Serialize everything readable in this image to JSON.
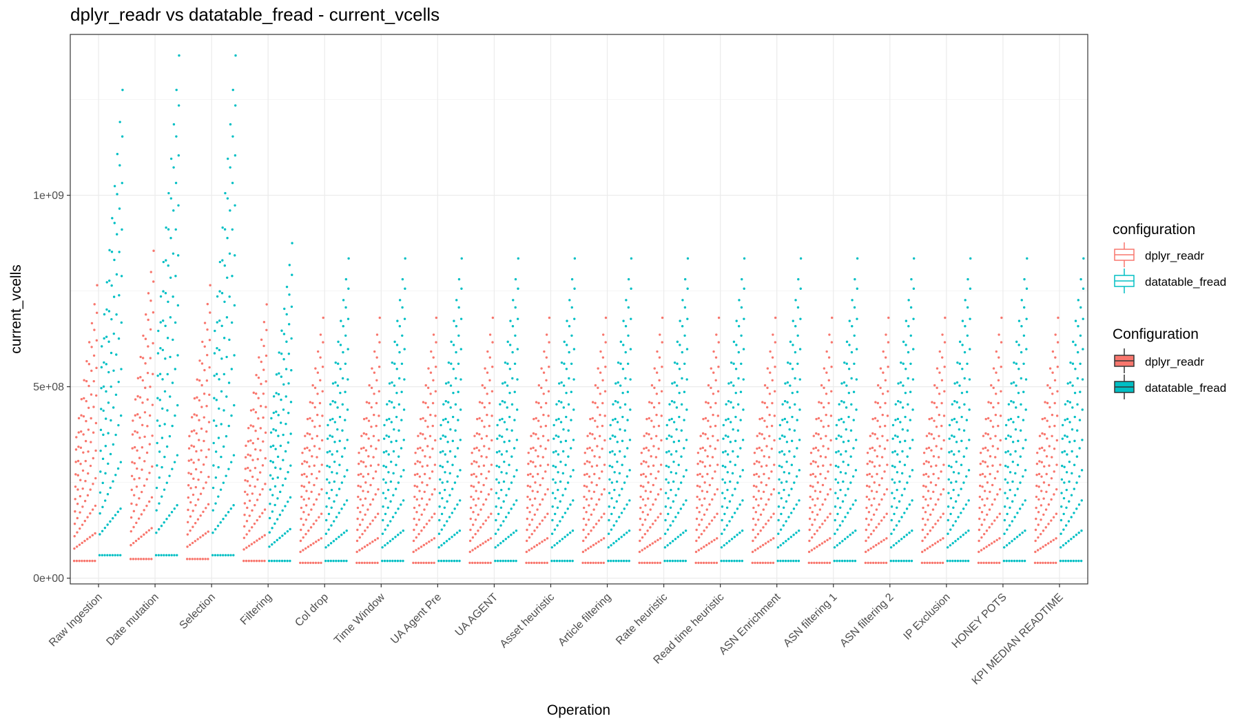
{
  "chart_data": {
    "type": "scatter",
    "title": "dplyr_readr vs datatable_fread - current_vcells",
    "xlabel": "Operation",
    "ylabel": "current_vcells",
    "ylim": [
      -15000000,
      1420000000
    ],
    "yticks": [
      {
        "value": 0,
        "label": "0e+00"
      },
      {
        "value": 500000000,
        "label": "5e+08"
      },
      {
        "value": 1000000000,
        "label": "1e+09"
      }
    ],
    "categories": [
      "Raw Ingestion",
      "Date mutation",
      "Selection",
      "Filtering",
      "Col drop",
      "Time Window",
      "UA Agent Pre",
      "UA AGENT",
      "Asset heuristic",
      "Article filtering",
      "Rate heuristic",
      "Read time heuristic",
      "ASN Enrichment",
      "ASN filtering 1",
      "ASN filtering 2",
      "IP Exclusion",
      "HONEY POTS",
      "KPI MEDIAN READTIME"
    ],
    "grid": true,
    "legend_position": "right",
    "series": [
      {
        "name": "dplyr_readr",
        "color": "#F8766D",
        "min": [
          45000000,
          50000000,
          50000000,
          45000000,
          40000000,
          40000000,
          40000000,
          40000000,
          40000000,
          40000000,
          40000000,
          40000000,
          40000000,
          40000000,
          40000000,
          40000000,
          40000000,
          40000000
        ],
        "max": [
          765000000,
          855000000,
          765000000,
          715000000,
          680000000,
          680000000,
          680000000,
          680000000,
          680000000,
          680000000,
          680000000,
          680000000,
          680000000,
          680000000,
          680000000,
          680000000,
          680000000,
          680000000
        ]
      },
      {
        "name": "datatable_fread",
        "color": "#00BFC4",
        "min": [
          60000000,
          60000000,
          60000000,
          45000000,
          45000000,
          45000000,
          45000000,
          45000000,
          45000000,
          45000000,
          45000000,
          45000000,
          45000000,
          45000000,
          45000000,
          45000000,
          45000000,
          45000000
        ],
        "max": [
          1275000000,
          1365000000,
          1365000000,
          875000000,
          835000000,
          835000000,
          835000000,
          835000000,
          835000000,
          835000000,
          835000000,
          835000000,
          835000000,
          835000000,
          835000000,
          835000000,
          835000000,
          835000000
        ]
      }
    ]
  },
  "legend": {
    "group1_title": "configuration",
    "group2_title": "Configuration",
    "items": [
      {
        "label": "dplyr_readr",
        "color": "#F8766D"
      },
      {
        "label": "datatable_fread",
        "color": "#00BFC4"
      }
    ]
  }
}
